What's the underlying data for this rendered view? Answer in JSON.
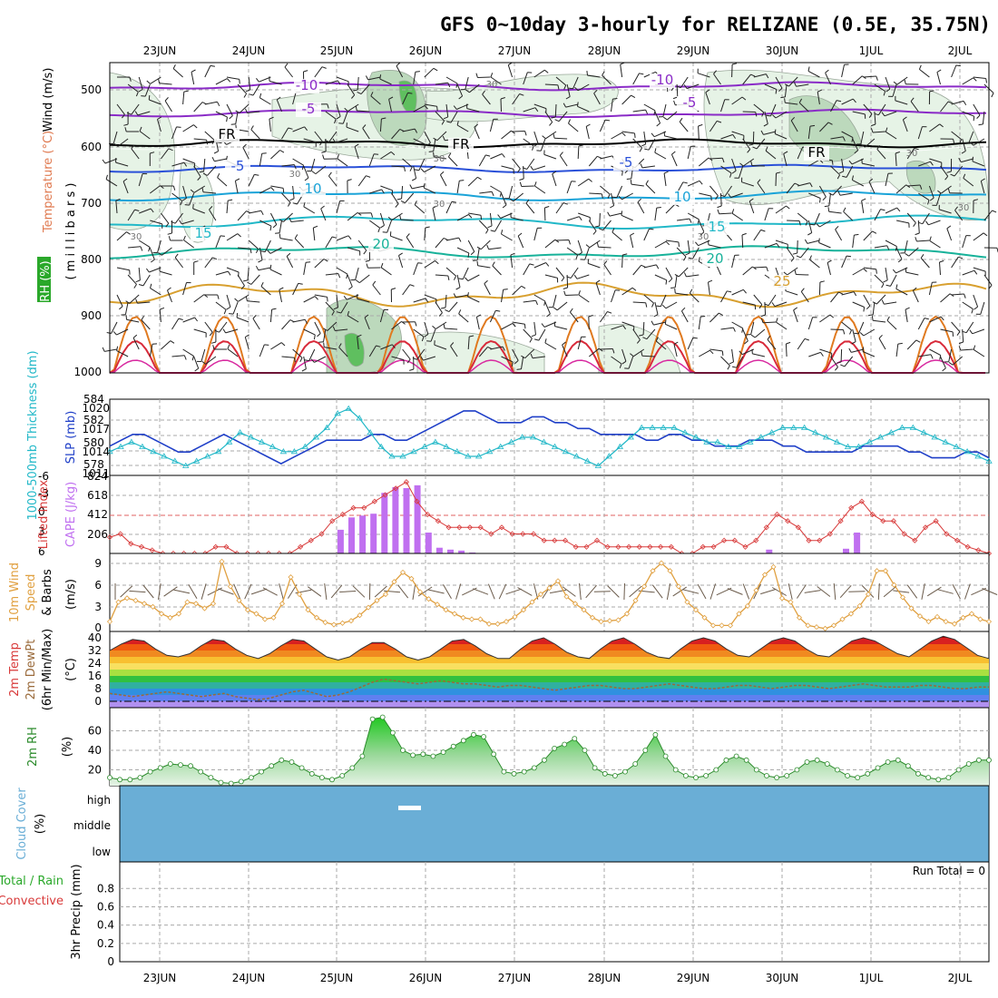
{
  "title": "GFS 0~10day 3-hourly for RELIZANE (0.5E, 35.75N)",
  "dates": [
    "23JUN",
    "24JUN",
    "25JUN",
    "26JUN",
    "27JUN",
    "28JUN",
    "29JUN",
    "30JUN",
    "1JUL",
    "2JUL"
  ],
  "colors": {
    "grid": "#aaaaaa",
    "rh_light": "#e6f3e6",
    "rh_mid": "#bcd9bc",
    "rh_dark": "#8ab28a",
    "temp_purple": "#8a2bc7",
    "temp_blue": "#2a50d8",
    "temp_cyan": "#1aa3d8",
    "temp_teal": "#18b29a",
    "temp_green": "#16a870",
    "temp_gold": "#d8a030",
    "temp_orange": "#e07a20",
    "temp_red": "#d82a3a",
    "slp": "#1f3fc8",
    "thickness": "#22b8c8",
    "li": "#d83a3a",
    "cape": "#c070f0",
    "wind10": "#e0a040",
    "rh2m": "#2a8a2a",
    "cloud": "#6aaed6",
    "dewpt": "#9a6a3a"
  },
  "upper_panel": {
    "ylabel_wind": "Wind (m/s)",
    "ylabel_temp": "Temperature (°C)",
    "ylabel_rh": "RH (%)",
    "ylabel_unit": "( m i l l i b a r s )",
    "yticks": [
      "500",
      "600",
      "700",
      "800",
      "900",
      "1000"
    ],
    "contour_labels": [
      "-10",
      "-10",
      "-5",
      "-5",
      "FR",
      "FR",
      "FR",
      "-5",
      "-5",
      "10",
      "10",
      "15",
      "15",
      "20",
      "20",
      "25"
    ],
    "rh_labels": [
      "30",
      "30",
      "30",
      "30",
      "30",
      "30",
      "30",
      "30"
    ]
  },
  "thickness_panel": {
    "ylabel_left": "1000-500mb Thickness (dm)",
    "ylabel_right": "SLP (mb)",
    "left_ticks": [
      "584",
      "582",
      "580",
      "578"
    ],
    "right_ticks": [
      "1020",
      "1017",
      "1014",
      "1011"
    ]
  },
  "cape_panel": {
    "ylabel_left": "Lifted Index",
    "ylabel_right": "CAPE (J/kg)",
    "left_ticks": [
      "-6",
      "-3",
      "0",
      "3",
      "6"
    ],
    "right_ticks": [
      "824",
      "618",
      "412",
      "206"
    ]
  },
  "wind_panel": {
    "ylabel1": "10m Wind",
    "ylabel2": "Speed",
    "ylabel3": "& Barbs",
    "unit": "(m/s)",
    "ticks": [
      "9",
      "6",
      "3",
      "0"
    ]
  },
  "temp_panel": {
    "ylabel1": "2m Temp",
    "ylabel2": "2m DewPt",
    "ylabel3": "(6hr Min/Max)",
    "unit": "(°C)",
    "ticks": [
      "40",
      "32",
      "24",
      "16",
      "8",
      "0"
    ]
  },
  "rh_panel": {
    "ylabel": "2m RH",
    "unit": "(%)",
    "ticks": [
      "60",
      "40",
      "20"
    ]
  },
  "cloud_panel": {
    "ylabel": "Cloud Cover",
    "unit": "(%)",
    "levels": [
      "high",
      "middle",
      "low"
    ]
  },
  "precip_panel": {
    "ylabel_total": "Total / Rain",
    "ylabel_conv": "Convective",
    "ylabel_unit": "3hr Precip (mm)",
    "run_total": "Run Total = 0",
    "ticks": [
      "0.8",
      "0.6",
      "0.4",
      "0.2",
      "0"
    ]
  },
  "chart_data": {
    "type": "line",
    "title": "GFS 0~10day 3-hourly for RELIZANE (0.5E, 35.75N)",
    "x_categories": [
      "23JUN",
      "24JUN",
      "25JUN",
      "26JUN",
      "27JUN",
      "28JUN",
      "29JUN",
      "30JUN",
      "1JUL",
      "2JUL"
    ],
    "slp_mb": [
      1014,
      1015,
      1016,
      1016,
      1015,
      1014,
      1013,
      1013,
      1014,
      1015,
      1016,
      1015,
      1014,
      1013,
      1012,
      1011,
      1012,
      1013,
      1014,
      1015,
      1015,
      1015,
      1015,
      1016,
      1016,
      1015,
      1015,
      1016,
      1017,
      1018,
      1019,
      1020,
      1020,
      1019,
      1018,
      1018,
      1018,
      1019,
      1019,
      1018,
      1018,
      1017,
      1017,
      1016,
      1016,
      1016,
      1016,
      1015,
      1015,
      1016,
      1016,
      1015,
      1015,
      1014,
      1014,
      1014,
      1015,
      1015,
      1015,
      1014,
      1014,
      1013,
      1013,
      1013,
      1013,
      1013,
      1014,
      1014,
      1014,
      1014,
      1013,
      1013,
      1012,
      1012,
      1012,
      1013,
      1013,
      1012
    ],
    "thickness_dm": [
      579.5,
      580,
      580.5,
      580,
      579.5,
      579,
      578.5,
      578,
      578.5,
      579,
      579.5,
      580.5,
      581.5,
      581,
      580.5,
      580,
      579.5,
      579.5,
      580,
      581,
      582,
      583.5,
      584,
      583,
      581.5,
      580,
      579,
      579,
      579.5,
      580,
      580.5,
      580,
      579.5,
      579,
      579,
      579.5,
      580,
      580.5,
      581,
      581,
      580.5,
      580,
      579.5,
      579,
      578.5,
      578,
      579,
      580,
      581,
      582,
      582,
      582,
      582,
      581.5,
      581,
      580.5,
      580.5,
      580,
      580,
      580.5,
      581,
      581.5,
      582,
      582,
      582,
      581.5,
      581,
      580.5,
      580,
      580,
      580.5,
      581,
      581.5,
      582,
      582,
      581.5,
      581,
      580.5,
      580,
      579.5,
      579,
      578.5
    ],
    "cape_jkg": [
      0,
      0,
      0,
      0,
      0,
      0,
      0,
      0,
      0,
      0,
      0,
      0,
      0,
      0,
      0,
      0,
      0,
      0,
      0,
      0,
      0,
      250,
      380,
      400,
      420,
      640,
      700,
      690,
      720,
      220,
      60,
      40,
      30,
      10,
      0,
      0,
      0,
      0,
      0,
      0,
      0,
      0,
      0,
      0,
      0,
      0,
      0,
      0,
      0,
      0,
      0,
      0,
      0,
      0,
      0,
      0,
      0,
      0,
      0,
      0,
      40,
      0,
      0,
      0,
      0,
      0,
      0,
      50,
      220,
      0,
      0,
      0,
      0,
      0,
      0,
      0,
      0,
      0,
      0,
      0,
      0
    ],
    "lifted_index": [
      3.5,
      3,
      4.5,
      5,
      5.5,
      6,
      6,
      6,
      6,
      6,
      5,
      5,
      6,
      6,
      6,
      6,
      6,
      6,
      5,
      4,
      3,
      1,
      0,
      -1,
      -1,
      -2,
      -3,
      -4,
      -5,
      -2,
      0,
      1,
      2,
      2,
      2,
      2,
      3,
      2,
      3,
      3,
      3,
      4,
      4,
      4,
      5,
      5,
      4,
      5,
      5,
      5,
      5,
      5,
      5,
      5,
      6,
      6,
      5,
      5,
      4,
      4,
      5,
      4,
      2,
      0,
      1,
      2,
      4,
      4,
      3,
      1,
      -1,
      -2,
      0,
      1,
      1,
      3,
      4,
      2,
      1,
      3,
      4,
      5,
      5.5,
      6
    ],
    "wind10_ms": [
      1.5,
      4,
      4.5,
      4.2,
      3.8,
      3.4,
      2.5,
      2,
      2.5,
      4,
      3.8,
      3.2,
      3.8,
      9.2,
      6,
      4.2,
      3,
      2.5,
      1.8,
      2,
      3.8,
      7.2,
      5,
      3,
      2,
      1.4,
      1.1,
      1.3,
      1.6,
      2.3,
      3.3,
      4.2,
      5,
      6.6,
      7.8,
      7,
      5.3,
      4.4,
      3.7,
      3,
      2.5,
      2,
      1.8,
      1.8,
      1.2,
      1.2,
      1.5,
      2.1,
      3,
      4,
      5,
      5.8,
      6.7,
      4.7,
      3.8,
      3,
      2,
      1.5,
      1.6,
      1.7,
      2.5,
      4.2,
      6,
      8,
      9,
      8,
      6,
      4,
      3,
      2,
      1,
      1,
      1,
      2.5,
      3.5,
      5.5,
      7.5,
      8.5,
      4.5,
      4,
      2,
      1,
      0.8,
      0.6,
      1,
      1.8,
      2.5,
      3.5,
      5,
      8,
      8,
      6.2,
      4.6,
      3.2,
      2.2,
      1.5,
      2.1,
      1.5,
      1.2,
      2,
      2.5,
      1.8,
      1.5
    ],
    "temp2m_c": [
      32,
      36,
      39,
      38,
      33,
      29,
      28,
      30,
      35,
      39,
      38,
      33,
      29,
      27,
      30,
      35,
      39,
      38,
      33,
      28,
      26,
      28,
      33,
      37,
      37,
      33,
      28,
      26,
      28,
      33,
      38,
      39,
      35,
      30,
      27,
      27,
      33,
      38,
      40,
      36,
      31,
      28,
      27,
      33,
      38,
      40,
      36,
      31,
      28,
      27,
      33,
      38,
      40,
      38,
      33,
      29,
      28,
      33,
      38,
      40,
      38,
      33,
      29,
      28,
      33,
      38,
      40,
      38,
      34,
      30,
      28,
      33,
      38,
      41,
      39,
      34,
      29,
      27
    ],
    "dewpt2m_c": [
      5,
      4,
      3,
      4,
      5,
      6,
      5,
      4,
      3,
      4,
      5,
      3,
      2,
      1,
      2,
      4,
      6,
      7,
      5,
      3,
      4,
      6,
      9,
      12,
      14,
      13,
      12,
      11,
      12,
      13,
      12,
      11,
      11,
      10,
      9,
      10,
      10,
      9,
      8,
      7,
      8,
      9,
      10,
      10,
      9,
      8,
      8,
      9,
      10,
      11,
      10,
      9,
      8,
      8,
      9,
      10,
      10,
      9,
      8,
      9,
      10,
      10,
      9,
      8,
      9,
      10,
      11,
      10,
      9,
      9,
      9,
      10,
      10,
      9,
      8,
      8,
      9,
      9
    ],
    "rh2m_pct": [
      12,
      10,
      10,
      12,
      18,
      22,
      26,
      25,
      24,
      18,
      12,
      7,
      6,
      8,
      12,
      18,
      24,
      30,
      28,
      22,
      16,
      12,
      10,
      14,
      22,
      34,
      72,
      74,
      58,
      40,
      35,
      36,
      34,
      38,
      44,
      50,
      56,
      54,
      36,
      18,
      16,
      18,
      22,
      30,
      42,
      46,
      52,
      40,
      22,
      16,
      14,
      18,
      26,
      40,
      56,
      34,
      20,
      14,
      12,
      14,
      20,
      30,
      34,
      30,
      20,
      14,
      12,
      14,
      20,
      28,
      30,
      26,
      20,
      14,
      12,
      16,
      22,
      28,
      30,
      24,
      16,
      12,
      10,
      12,
      20,
      26,
      30,
      30
    ],
    "precip_mm": [
      0,
      0,
      0,
      0,
      0,
      0,
      0,
      0,
      0,
      0
    ],
    "ylim_precip": [
      0,
      1
    ],
    "ylim_rh": [
      0,
      80
    ],
    "ylim_wind": [
      0,
      10
    ],
    "ylim_temp": [
      -4,
      44
    ],
    "ylim_cape": [
      0,
      824
    ],
    "ylim_li": [
      6,
      -6
    ],
    "ylim_slp": [
      1009,
      1022
    ],
    "ylim_thickness": [
      577,
      585
    ]
  }
}
